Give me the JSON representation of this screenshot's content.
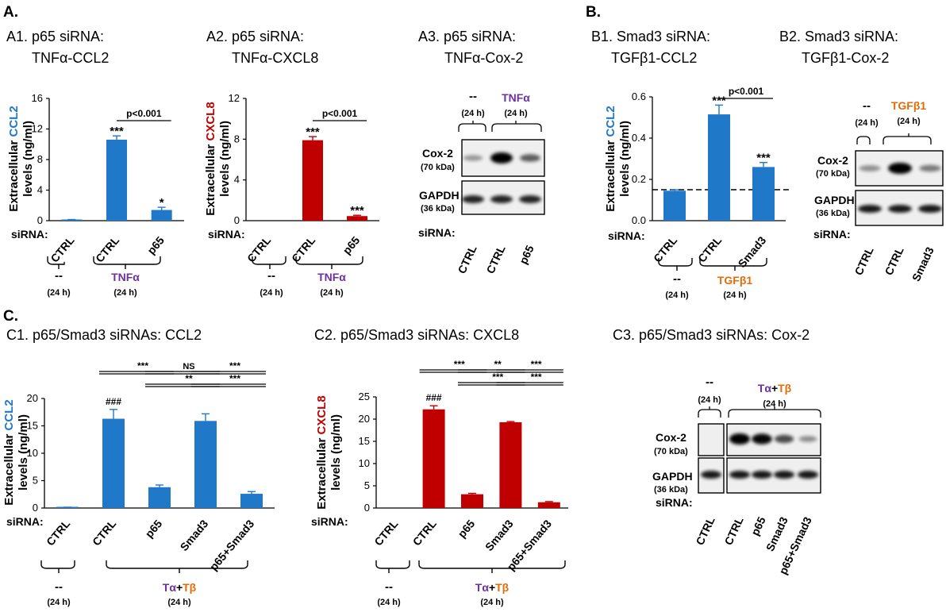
{
  "colors": {
    "ccl2": "#1f78c8",
    "cxcl8": "#c00000",
    "tnf": "#7030a0",
    "tgf": "#e36c09",
    "bar_blue": "#1f78c8",
    "bar_red": "#c00000"
  },
  "panel_letters": {
    "a": "A.",
    "b": "B.",
    "c": "C."
  },
  "labels": {
    "sirna": "siRNA:",
    "dash": "--",
    "h24": "(24 h)",
    "tnfa": "TNFα",
    "tgfb1": "TGFβ1",
    "ta": "Tα",
    "plus": "+",
    "tb": "Tβ",
    "ylab_pre": "Extracellular ",
    "ylab_levels": "levels (ng/ml)",
    "ccl2": "CCL2",
    "cxcl8": "CXCL8",
    "cox2": "Cox-2",
    "cox2_kda": "(70 kDa)",
    "gapdh": "GAPDH",
    "gapdh_kda": "(36 kDa)"
  },
  "titles": {
    "a1_l1": "A1. p65 siRNA:",
    "a1_l2": "TNFα-CCL2",
    "a2_l1": "A2. p65 siRNA:",
    "a2_l2": "TNFα-CXCL8",
    "a3_l1": "A3. p65 siRNA:",
    "a3_l2": "TNFα-Cox-2",
    "b1_l1": "B1. Smad3 siRNA:",
    "b1_l2": "TGFβ1-CCL2",
    "b2_l1": "B2. Smad3 siRNA:",
    "b2_l2": "TGFβ1-Cox-2",
    "c1": "C1. p65/Smad3 siRNAs: CCL2",
    "c2": "C2. p65/Smad3 siRNAs: CXCL8",
    "c3": "C3. p65/Smad3 siRNAs: Cox-2"
  },
  "chart_data": [
    {
      "id": "A1",
      "type": "bar",
      "title": "A1. p65 siRNA: TNFα-CCL2",
      "ylabel": "Extracellular CCL2 levels (ng/ml)",
      "categories": [
        "CTRL",
        "CTRL",
        "p65"
      ],
      "values": [
        0.1,
        10.6,
        1.4
      ],
      "errors": [
        0.05,
        0.5,
        0.35
      ],
      "ylim": [
        0,
        16
      ],
      "yticks": [
        0,
        4,
        8,
        12,
        16
      ],
      "ytick_labels": [
        "0",
        "4",
        "8",
        "12",
        "16"
      ],
      "bar_labels": [
        "",
        "***",
        "*"
      ],
      "brackets": [
        {
          "from": 1,
          "to": 2,
          "label": "p<0.001",
          "level": 0
        }
      ],
      "groups": [
        {
          "from": 0,
          "to": 0,
          "label": "--",
          "sub": "(24 h)"
        },
        {
          "from": 1,
          "to": 2,
          "label": "TNFα",
          "sub": "(24 h)"
        }
      ]
    },
    {
      "id": "A2",
      "type": "bar",
      "title": "A2. p65 siRNA: TNFα-CXCL8",
      "ylabel": "Extracellular CXCL8 levels (ng/ml)",
      "categories": [
        "CTRL",
        "CTRL",
        "p65"
      ],
      "values": [
        0.0,
        7.9,
        0.45
      ],
      "errors": [
        0.0,
        0.35,
        0.08
      ],
      "ylim": [
        0,
        12
      ],
      "yticks": [
        0,
        4,
        8,
        12
      ],
      "ytick_labels": [
        "0",
        "4",
        "8",
        "12"
      ],
      "bar_labels": [
        "",
        "***",
        "***"
      ],
      "brackets": [
        {
          "from": 1,
          "to": 2,
          "label": "p<0.001",
          "level": 0
        }
      ],
      "groups": [
        {
          "from": 0,
          "to": 0,
          "label": "--",
          "sub": "(24 h)"
        },
        {
          "from": 1,
          "to": 2,
          "label": "TNFα",
          "sub": "(24 h)"
        }
      ]
    },
    {
      "id": "B1",
      "type": "bar",
      "title": "B1. Smad3 siRNA: TGFβ1-CCL2",
      "ylabel": "Extracellular CCL2 levels (ng/ml)",
      "categories": [
        "CTRL",
        "CTRL",
        "Smad3"
      ],
      "values": [
        0.145,
        0.515,
        0.26
      ],
      "errors": [
        0.005,
        0.045,
        0.022
      ],
      "ylim": [
        0,
        0.6
      ],
      "yticks": [
        0,
        0.2,
        0.4,
        0.6
      ],
      "ytick_labels": [
        "0.0",
        "0.2",
        "0.4",
        "0.6"
      ],
      "baseline": 0.15,
      "bar_labels": [
        "",
        "***",
        "***"
      ],
      "brackets": [
        {
          "from": 1,
          "to": 2,
          "label": "p<0.001",
          "level": 0
        }
      ],
      "groups": [
        {
          "from": 0,
          "to": 0,
          "label": "--",
          "sub": "(24 h)"
        },
        {
          "from": 1,
          "to": 2,
          "label": "TGFβ1",
          "sub": "(24 h)"
        }
      ]
    },
    {
      "id": "C1",
      "type": "bar",
      "title": "C1. p65/Smad3 siRNAs: CCL2",
      "ylabel": "Extracellular CCL2 levels (ng/ml)",
      "categories": [
        "CTRL",
        "CTRL",
        "p65",
        "Smad3",
        "p65+Smad3"
      ],
      "values": [
        0.1,
        16.3,
        3.8,
        15.9,
        2.6
      ],
      "errors": [
        0.05,
        1.7,
        0.4,
        1.3,
        0.4
      ],
      "ylim": [
        0,
        20
      ],
      "yticks": [
        0,
        5,
        10,
        15,
        20
      ],
      "ytick_labels": [
        "0",
        "5",
        "10",
        "15",
        "20"
      ],
      "bar_labels": [
        "",
        "###",
        "",
        "",
        ""
      ],
      "brackets": [
        {
          "from": 1,
          "to": 2,
          "label": "***",
          "level": 2
        },
        {
          "from": 2,
          "to": 3,
          "label": "NS",
          "level": 2
        },
        {
          "from": 3,
          "to": 4,
          "label": "***",
          "level": 2
        },
        {
          "from": 2,
          "to": 3,
          "label": "**",
          "level": 1
        },
        {
          "from": 3,
          "to": 4,
          "label": "***",
          "level": 1
        }
      ],
      "groups": [
        {
          "from": 0,
          "to": 0,
          "label": "--",
          "sub": "(24 h)"
        },
        {
          "from": 1,
          "to": 4,
          "label": "Tα+Tβ",
          "sub": "(24 h)"
        }
      ]
    },
    {
      "id": "C2",
      "type": "bar",
      "title": "C2. p65/Smad3 siRNAs: CXCL8",
      "ylabel": "Extracellular CXCL8 levels (ng/ml)",
      "categories": [
        "CTRL",
        "CTRL",
        "p65",
        "Smad3",
        "p65+Smad3"
      ],
      "values": [
        0.0,
        22.2,
        3.1,
        19.3,
        1.3
      ],
      "errors": [
        0.0,
        0.8,
        0.2,
        0.15,
        0.15
      ],
      "ylim": [
        0,
        25
      ],
      "yticks": [
        0,
        5,
        10,
        15,
        20,
        25
      ],
      "ytick_labels": [
        "0",
        "5",
        "10",
        "15",
        "20",
        "25"
      ],
      "bar_labels": [
        "",
        "###",
        "",
        "",
        ""
      ],
      "brackets": [
        {
          "from": 1,
          "to": 2,
          "label": "***",
          "level": 2
        },
        {
          "from": 2,
          "to": 3,
          "label": "**",
          "level": 2
        },
        {
          "from": 3,
          "to": 4,
          "label": "***",
          "level": 2
        },
        {
          "from": 2,
          "to": 3,
          "label": "***",
          "level": 1
        },
        {
          "from": 3,
          "to": 4,
          "label": "***",
          "level": 1
        }
      ],
      "groups": [
        {
          "from": 0,
          "to": 0,
          "label": "--",
          "sub": "(24 h)"
        },
        {
          "from": 1,
          "to": 4,
          "label": "Tα+Tβ",
          "sub": "(24 h)"
        }
      ]
    }
  ],
  "blots": {
    "A3": {
      "lanes": [
        "CTRL",
        "CTRL",
        "p65"
      ],
      "cox2_intensity": [
        0.15,
        1.0,
        0.45
      ],
      "gapdh_intensity": [
        0.85,
        0.85,
        0.85
      ]
    },
    "B2": {
      "lanes": [
        "CTRL",
        "CTRL",
        "Smad3"
      ],
      "cox2_intensity": [
        0.2,
        1.0,
        0.3
      ],
      "gapdh_intensity": [
        0.9,
        0.9,
        0.9
      ]
    },
    "C3": {
      "lanes": [
        "CTRL",
        "CTRL",
        "p65",
        "Smad3",
        "p65+Smad3"
      ],
      "cox2_intensity": [
        0.02,
        1.0,
        0.9,
        0.55,
        0.2
      ],
      "gapdh_intensity": [
        0.9,
        0.9,
        0.9,
        0.9,
        0.9
      ]
    }
  }
}
